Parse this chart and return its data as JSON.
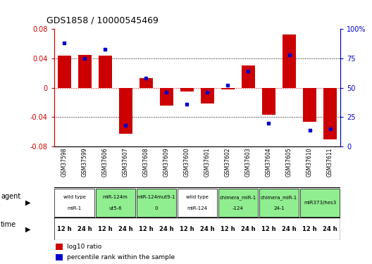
{
  "title": "GDS1858 / 10000545469",
  "samples": [
    "GSM37598",
    "GSM37599",
    "GSM37606",
    "GSM37607",
    "GSM37608",
    "GSM37609",
    "GSM37600",
    "GSM37601",
    "GSM37602",
    "GSM37603",
    "GSM37604",
    "GSM37605",
    "GSM37610",
    "GSM37611"
  ],
  "log10_ratio": [
    0.044,
    0.045,
    0.044,
    -0.063,
    0.013,
    -0.024,
    -0.005,
    -0.021,
    -0.002,
    0.03,
    -0.037,
    0.073,
    -0.046,
    -0.07
  ],
  "percentile": [
    88,
    75,
    83,
    18,
    58,
    46,
    36,
    46,
    52,
    64,
    20,
    78,
    14,
    15
  ],
  "ylim": [
    -0.08,
    0.08
  ],
  "y2lim": [
    0,
    100
  ],
  "yticks_left": [
    -0.08,
    -0.04,
    0,
    0.04,
    0.08
  ],
  "ytick_labels_left": [
    "-0.08",
    "-0.04",
    "0",
    "0.04",
    "0.08"
  ],
  "y2ticks": [
    0,
    25,
    50,
    75,
    100
  ],
  "y2tick_labels": [
    "0",
    "25",
    "50",
    "75",
    "100%"
  ],
  "agent_groups": [
    {
      "label": "wild type\nmiR-1",
      "start": 0,
      "end": 2,
      "color": "#ffffff"
    },
    {
      "label": "miR-124m\nut5-6",
      "start": 2,
      "end": 4,
      "color": "#90ee90"
    },
    {
      "label": "miR-124mut9-1\n0",
      "start": 4,
      "end": 6,
      "color": "#90ee90"
    },
    {
      "label": "wild type\nmiR-124",
      "start": 6,
      "end": 8,
      "color": "#ffffff"
    },
    {
      "label": "chimera_miR-1\n-124",
      "start": 8,
      "end": 10,
      "color": "#90ee90"
    },
    {
      "label": "chimera_miR-1\n24-1",
      "start": 10,
      "end": 12,
      "color": "#90ee90"
    },
    {
      "label": "miR373/hes3",
      "start": 12,
      "end": 14,
      "color": "#90ee90"
    }
  ],
  "time_labels": [
    "12 h",
    "24 h",
    "12 h",
    "24 h",
    "12 h",
    "24 h",
    "12 h",
    "24 h",
    "12 h",
    "24 h",
    "12 h",
    "24 h",
    "12 h",
    "24 h"
  ],
  "bar_color": "#cc0000",
  "dot_color": "#0000cc",
  "bg_color": "#ffffff",
  "header_bg": "#c0c0c0",
  "time_bg": "#ee44ee",
  "left_axis_color": "#cc0000",
  "right_axis_color": "#0000cc"
}
